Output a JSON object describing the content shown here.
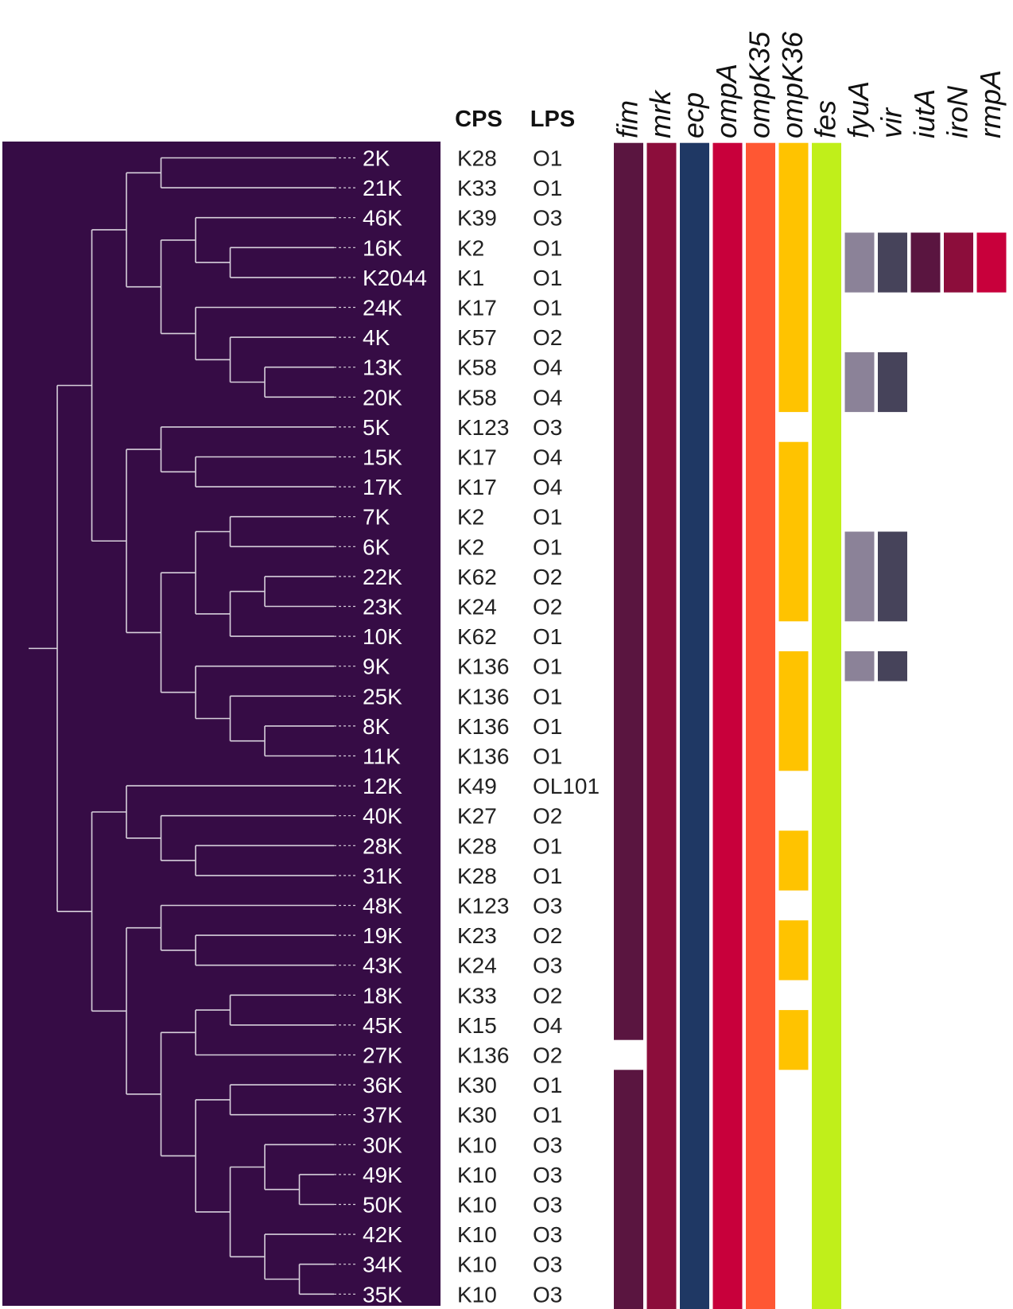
{
  "headers": {
    "cps": "CPS",
    "lps": "LPS"
  },
  "genes": [
    "fim",
    "mrk",
    "ecp",
    "ompA",
    "ompK35",
    "ompK36",
    "fes",
    "fyuA",
    "vir",
    "iutA",
    "iroN",
    "rmpA"
  ],
  "gene_colors": [
    "#5a1540",
    "#8c0d3b",
    "#1f3864",
    "#c8003b",
    "#ff5733",
    "#ffc300",
    "#c0ef1a",
    "#8b8298",
    "#46435a",
    "#5a1540",
    "#8c0d3b",
    "#c8003b"
  ],
  "colors": {
    "tree_bg": "#360c45",
    "tree_line": "#d7d0db"
  },
  "isolates": [
    {
      "id": "2K",
      "cps": "K28",
      "lps": "O1",
      "genes": [
        1,
        1,
        1,
        1,
        1,
        1,
        1,
        0,
        0,
        0,
        0,
        0
      ]
    },
    {
      "id": "21K",
      "cps": "K33",
      "lps": "O1",
      "genes": [
        1,
        1,
        1,
        1,
        1,
        1,
        1,
        0,
        0,
        0,
        0,
        0
      ]
    },
    {
      "id": "46K",
      "cps": "K39",
      "lps": "O3",
      "genes": [
        1,
        1,
        1,
        1,
        1,
        1,
        1,
        0,
        0,
        0,
        0,
        0
      ]
    },
    {
      "id": "16K",
      "cps": "K2",
      "lps": "O1",
      "genes": [
        1,
        1,
        1,
        1,
        1,
        1,
        1,
        1,
        1,
        1,
        1,
        1
      ]
    },
    {
      "id": "K2044",
      "cps": "K1",
      "lps": "O1",
      "genes": [
        1,
        1,
        1,
        1,
        1,
        1,
        1,
        1,
        1,
        1,
        1,
        1
      ]
    },
    {
      "id": "24K",
      "cps": "K17",
      "lps": "O1",
      "genes": [
        1,
        1,
        1,
        1,
        1,
        1,
        1,
        0,
        0,
        0,
        0,
        0
      ]
    },
    {
      "id": "4K",
      "cps": "K57",
      "lps": "O2",
      "genes": [
        1,
        1,
        1,
        1,
        1,
        1,
        1,
        0,
        0,
        0,
        0,
        0
      ]
    },
    {
      "id": "13K",
      "cps": "K58",
      "lps": "O4",
      "genes": [
        1,
        1,
        1,
        1,
        1,
        1,
        1,
        1,
        1,
        0,
        0,
        0
      ]
    },
    {
      "id": "20K",
      "cps": "K58",
      "lps": "O4",
      "genes": [
        1,
        1,
        1,
        1,
        1,
        1,
        1,
        1,
        1,
        0,
        0,
        0
      ]
    },
    {
      "id": "5K",
      "cps": "K123",
      "lps": "O3",
      "genes": [
        1,
        1,
        1,
        1,
        1,
        0,
        1,
        0,
        0,
        0,
        0,
        0
      ]
    },
    {
      "id": "15K",
      "cps": "K17",
      "lps": "O4",
      "genes": [
        1,
        1,
        1,
        1,
        1,
        1,
        1,
        0,
        0,
        0,
        0,
        0
      ]
    },
    {
      "id": "17K",
      "cps": "K17",
      "lps": "O4",
      "genes": [
        1,
        1,
        1,
        1,
        1,
        1,
        1,
        0,
        0,
        0,
        0,
        0
      ]
    },
    {
      "id": "7K",
      "cps": "K2",
      "lps": "O1",
      "genes": [
        1,
        1,
        1,
        1,
        1,
        1,
        1,
        0,
        0,
        0,
        0,
        0
      ]
    },
    {
      "id": "6K",
      "cps": "K2",
      "lps": "O1",
      "genes": [
        1,
        1,
        1,
        1,
        1,
        1,
        1,
        1,
        1,
        0,
        0,
        0
      ]
    },
    {
      "id": "22K",
      "cps": "K62",
      "lps": "O2",
      "genes": [
        1,
        1,
        1,
        1,
        1,
        1,
        1,
        1,
        1,
        0,
        0,
        0
      ]
    },
    {
      "id": "23K",
      "cps": "K24",
      "lps": "O2",
      "genes": [
        1,
        1,
        1,
        1,
        1,
        1,
        1,
        1,
        1,
        0,
        0,
        0
      ]
    },
    {
      "id": "10K",
      "cps": "K62",
      "lps": "O1",
      "genes": [
        1,
        1,
        1,
        1,
        1,
        0,
        1,
        0,
        0,
        0,
        0,
        0
      ]
    },
    {
      "id": "9K",
      "cps": "K136",
      "lps": "O1",
      "genes": [
        1,
        1,
        1,
        1,
        1,
        1,
        1,
        1,
        1,
        0,
        0,
        0
      ]
    },
    {
      "id": "25K",
      "cps": "K136",
      "lps": "O1",
      "genes": [
        1,
        1,
        1,
        1,
        1,
        1,
        1,
        0,
        0,
        0,
        0,
        0
      ]
    },
    {
      "id": "8K",
      "cps": "K136",
      "lps": "O1",
      "genes": [
        1,
        1,
        1,
        1,
        1,
        1,
        1,
        0,
        0,
        0,
        0,
        0
      ]
    },
    {
      "id": "11K",
      "cps": "K136",
      "lps": "O1",
      "genes": [
        1,
        1,
        1,
        1,
        1,
        1,
        1,
        0,
        0,
        0,
        0,
        0
      ]
    },
    {
      "id": "12K",
      "cps": "K49",
      "lps": "OL101",
      "genes": [
        1,
        1,
        1,
        1,
        1,
        0,
        1,
        0,
        0,
        0,
        0,
        0
      ]
    },
    {
      "id": "40K",
      "cps": "K27",
      "lps": "O2",
      "genes": [
        1,
        1,
        1,
        1,
        1,
        0,
        1,
        0,
        0,
        0,
        0,
        0
      ]
    },
    {
      "id": "28K",
      "cps": "K28",
      "lps": "O1",
      "genes": [
        1,
        1,
        1,
        1,
        1,
        1,
        1,
        0,
        0,
        0,
        0,
        0
      ]
    },
    {
      "id": "31K",
      "cps": "K28",
      "lps": "O1",
      "genes": [
        1,
        1,
        1,
        1,
        1,
        1,
        1,
        0,
        0,
        0,
        0,
        0
      ]
    },
    {
      "id": "48K",
      "cps": "K123",
      "lps": "O3",
      "genes": [
        1,
        1,
        1,
        1,
        1,
        0,
        1,
        0,
        0,
        0,
        0,
        0
      ]
    },
    {
      "id": "19K",
      "cps": "K23",
      "lps": "O2",
      "genes": [
        1,
        1,
        1,
        1,
        1,
        1,
        1,
        0,
        0,
        0,
        0,
        0
      ]
    },
    {
      "id": "43K",
      "cps": "K24",
      "lps": "O3",
      "genes": [
        1,
        1,
        1,
        1,
        1,
        1,
        1,
        0,
        0,
        0,
        0,
        0
      ]
    },
    {
      "id": "18K",
      "cps": "K33",
      "lps": "O2",
      "genes": [
        1,
        1,
        1,
        1,
        1,
        0,
        1,
        0,
        0,
        0,
        0,
        0
      ]
    },
    {
      "id": "45K",
      "cps": "K15",
      "lps": "O4",
      "genes": [
        1,
        1,
        1,
        1,
        1,
        1,
        1,
        0,
        0,
        0,
        0,
        0
      ]
    },
    {
      "id": "27K",
      "cps": "K136",
      "lps": "O2",
      "genes": [
        0,
        1,
        1,
        1,
        1,
        1,
        1,
        0,
        0,
        0,
        0,
        0
      ]
    },
    {
      "id": "36K",
      "cps": "K30",
      "lps": "O1",
      "genes": [
        1,
        1,
        1,
        1,
        1,
        0,
        1,
        0,
        0,
        0,
        0,
        0
      ]
    },
    {
      "id": "37K",
      "cps": "K30",
      "lps": "O1",
      "genes": [
        1,
        1,
        1,
        1,
        1,
        0,
        1,
        0,
        0,
        0,
        0,
        0
      ]
    },
    {
      "id": "30K",
      "cps": "K10",
      "lps": "O3",
      "genes": [
        1,
        1,
        1,
        1,
        1,
        0,
        1,
        0,
        0,
        0,
        0,
        0
      ]
    },
    {
      "id": "49K",
      "cps": "K10",
      "lps": "O3",
      "genes": [
        1,
        1,
        1,
        1,
        1,
        0,
        1,
        0,
        0,
        0,
        0,
        0
      ]
    },
    {
      "id": "50K",
      "cps": "K10",
      "lps": "O3",
      "genes": [
        1,
        1,
        1,
        1,
        1,
        0,
        1,
        0,
        0,
        0,
        0,
        0
      ]
    },
    {
      "id": "42K",
      "cps": "K10",
      "lps": "O3",
      "genes": [
        1,
        1,
        1,
        1,
        1,
        0,
        1,
        0,
        0,
        0,
        0,
        0
      ]
    },
    {
      "id": "34K",
      "cps": "K10",
      "lps": "O3",
      "genes": [
        1,
        1,
        1,
        1,
        1,
        0,
        1,
        0,
        0,
        0,
        0,
        0
      ]
    },
    {
      "id": "35K",
      "cps": "K10",
      "lps": "O3",
      "genes": [
        1,
        1,
        1,
        1,
        1,
        0,
        1,
        0,
        0,
        0,
        0,
        0
      ]
    }
  ]
}
